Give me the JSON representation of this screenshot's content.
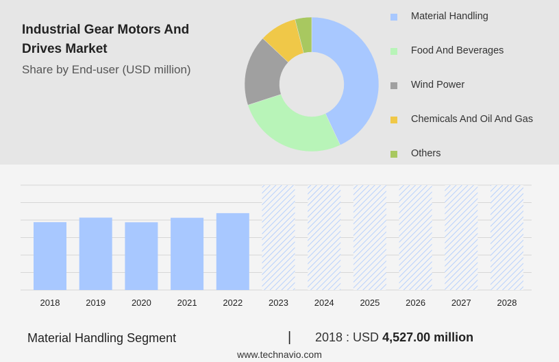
{
  "title": "Industrial Gear Motors And Drives Market",
  "subtitle": "Share by End-user (USD million)",
  "colors": {
    "material_handling": "#a8c8ff",
    "food_and_beverages": "#b8f4b8",
    "wind_power": "#a0a0a0",
    "chemicals_oil_gas": "#f0c848",
    "others": "#a8c860"
  },
  "chart_data": [
    {
      "type": "pie",
      "donut": true,
      "series": [
        {
          "name": "Material Handling",
          "value": 43,
          "color": "#a8c8ff"
        },
        {
          "name": "Food And Beverages",
          "value": 27,
          "color": "#b8f4b8"
        },
        {
          "name": "Wind Power",
          "value": 17,
          "color": "#a0a0a0"
        },
        {
          "name": "Chemicals And Oil And Gas",
          "value": 9,
          "color": "#f0c848"
        },
        {
          "name": "Others",
          "value": 4,
          "color": "#a8c860"
        }
      ],
      "legend": "right"
    },
    {
      "type": "bar",
      "categories": [
        "2018",
        "2019",
        "2020",
        "2021",
        "2022",
        "2023",
        "2024",
        "2025",
        "2026",
        "2027",
        "2028"
      ],
      "values": [
        4527,
        4830,
        4520,
        4820,
        5130,
        null,
        null,
        null,
        null,
        null,
        null
      ],
      "forecast_from": "2023",
      "ylim": [
        0,
        7000
      ],
      "grid": true,
      "color": "#a8c8ff"
    }
  ],
  "footer": {
    "segment": "Material Handling Segment",
    "separator": "|",
    "year_label": "2018 : USD",
    "value": "4,527.00 million",
    "site": "www.technavio.com"
  }
}
